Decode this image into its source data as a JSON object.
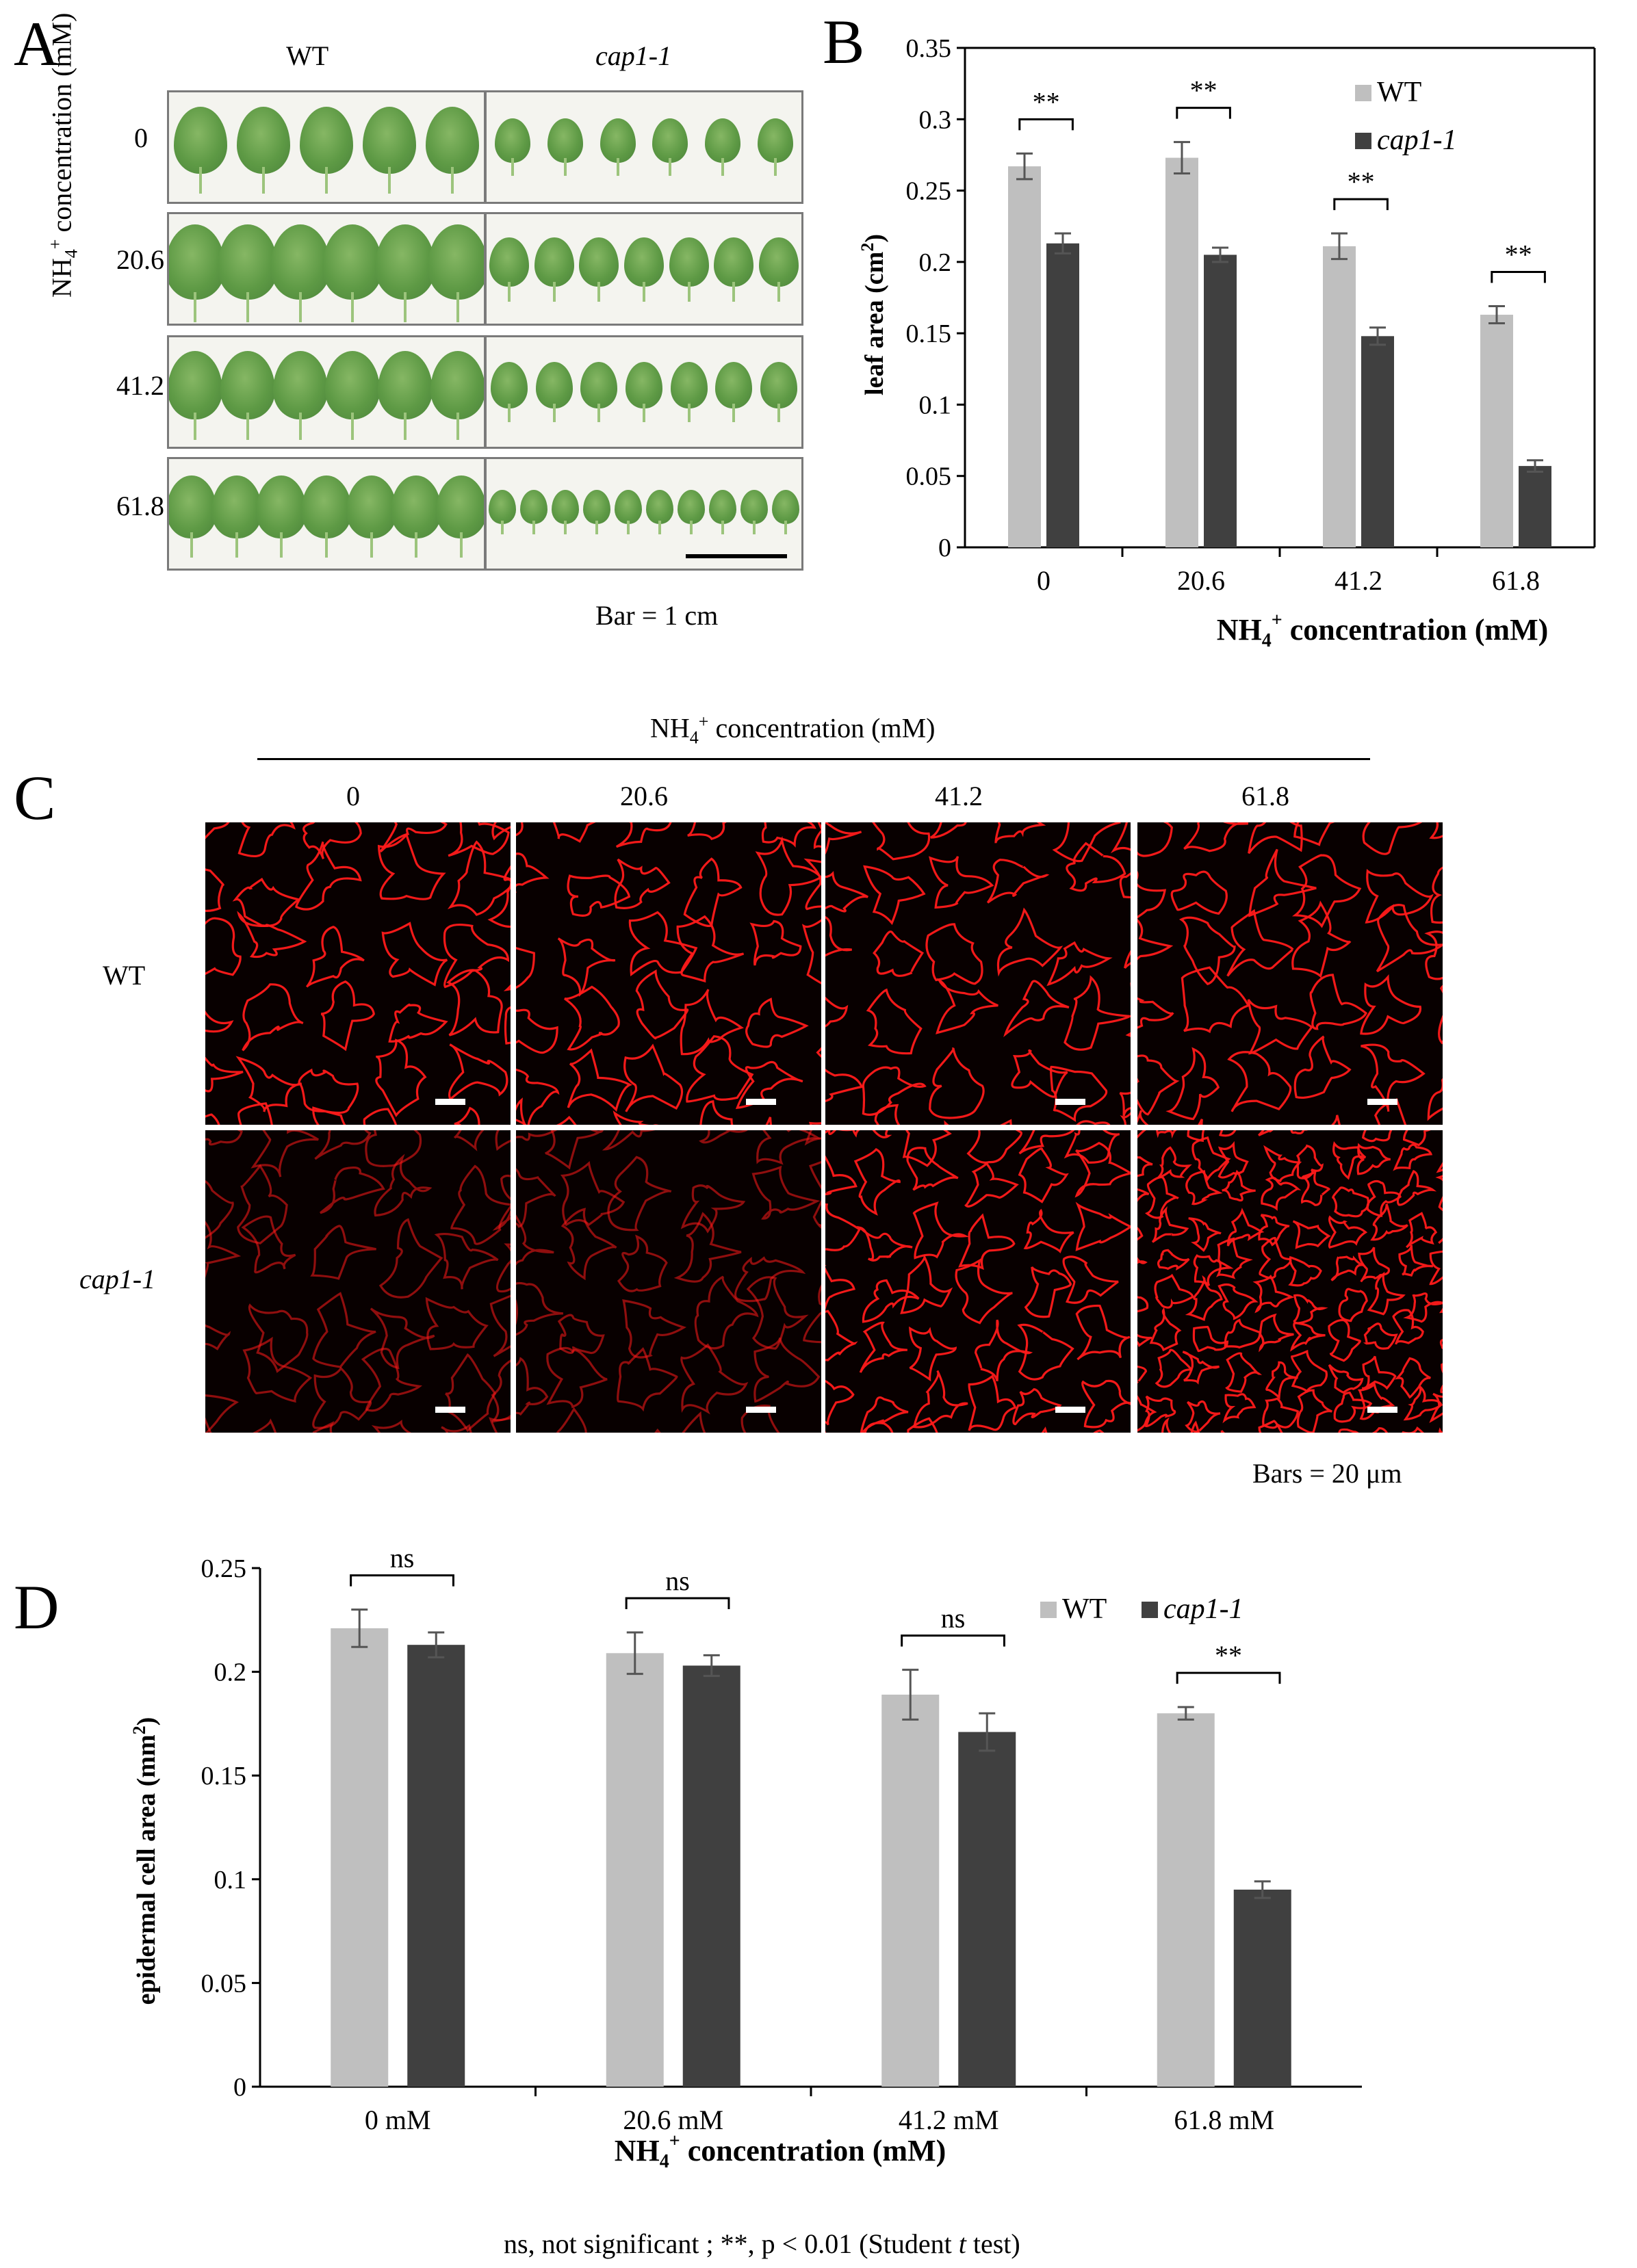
{
  "panelA": {
    "letter": "A",
    "col_wt": "WT",
    "col_mut": "cap1-1",
    "ylabel_main": "NH",
    "ylabel_sub": "4",
    "ylabel_sup": "+",
    "ylabel_rest": " concentration (mM)",
    "rows": [
      "0",
      "20.6",
      "41.2",
      "61.8"
    ],
    "bar_note": "Bar = 1 cm"
  },
  "panelC": {
    "letter": "C",
    "header_main": "NH",
    "header_sub": "4",
    "header_sup": "+",
    "header_rest": " concentration (mM)",
    "cols": [
      "0",
      "20.6",
      "41.2",
      "61.8"
    ],
    "row_wt": "WT",
    "row_mut": "cap1-1",
    "bar_note": "Bars = 20 μm"
  },
  "colors": {
    "wt": "#bfbfbf",
    "mut": "#404040",
    "cell_wall": "#ff1a1a"
  },
  "chart_data": [
    {
      "type": "bar",
      "panel": "B",
      "title": "",
      "ylabel": "leaf area (cm²)",
      "xlabel": "NH4+ concentration (mM)",
      "categories": [
        "0",
        "20.6",
        "41.2",
        "61.8"
      ],
      "series": [
        {
          "name": "WT",
          "values": [
            0.267,
            0.273,
            0.211,
            0.163
          ],
          "errors": [
            0.009,
            0.011,
            0.009,
            0.006
          ]
        },
        {
          "name": "cap1-1",
          "values": [
            0.213,
            0.205,
            0.148,
            0.057
          ],
          "errors": [
            0.007,
            0.005,
            0.006,
            0.004
          ]
        }
      ],
      "yticks": [
        "0",
        "0.05",
        "0.1",
        "0.15",
        "0.2",
        "0.25",
        "0.3",
        "0.35"
      ],
      "ylim": [
        0,
        0.35
      ],
      "significance": [
        "**",
        "**",
        "**",
        "**"
      ],
      "legend_position": "top-right"
    },
    {
      "type": "bar",
      "panel": "D",
      "title": "",
      "ylabel": "epidermal cell area (mm²)",
      "xlabel": "NH4+ concentration (mM)",
      "categories": [
        "0 mM",
        "20.6 mM",
        "41.2 mM",
        "61.8 mM"
      ],
      "series": [
        {
          "name": "WT",
          "values": [
            0.221,
            0.209,
            0.189,
            0.18
          ],
          "errors": [
            0.009,
            0.01,
            0.012,
            0.003
          ]
        },
        {
          "name": "cap1-1",
          "values": [
            0.213,
            0.203,
            0.171,
            0.095
          ],
          "errors": [
            0.006,
            0.005,
            0.009,
            0.004
          ]
        }
      ],
      "yticks": [
        "0",
        "0.05",
        "0.1",
        "0.15",
        "0.2",
        "0.25"
      ],
      "ylim": [
        0,
        0.25
      ],
      "significance": [
        "ns",
        "ns",
        "ns",
        "**"
      ],
      "legend_position": "top-right"
    }
  ],
  "footnote": {
    "part1": "ns, not significant ; **, p < 0.01 (Student ",
    "t": "t",
    "part2": " test)"
  }
}
